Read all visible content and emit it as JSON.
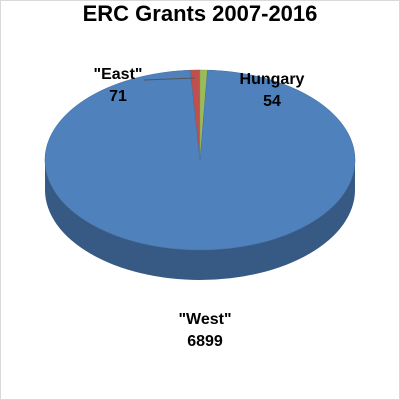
{
  "chart_data": {
    "type": "pie",
    "title": "ERC Grants 2007-2016",
    "categories": [
      "\"East\"",
      "Hungary",
      "\"West\""
    ],
    "values": [
      71,
      54,
      6899
    ],
    "colors": [
      "#c0504d",
      "#9bbb59",
      "#4f81bd"
    ]
  }
}
